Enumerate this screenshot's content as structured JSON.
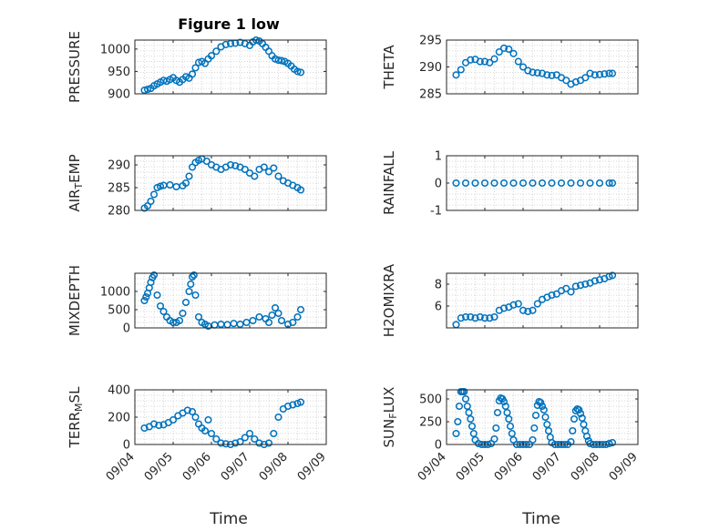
{
  "figure": {
    "title": "Figure 1 low",
    "xlabel": "Time"
  },
  "style": {
    "marker_color": "#0072BD",
    "axis_color": "#262626",
    "grid_color": "#c8c8c8"
  },
  "chart_data": [
    {
      "type": "scatter",
      "ylabel": "PRESSURE",
      "title": "Figure 1 low",
      "xlim": [
        "09/04",
        "09/09"
      ],
      "ylim": [
        900,
        1020
      ],
      "yticks": [
        900,
        950,
        1000
      ],
      "xtick_labels": [],
      "grid": "dotted",
      "series": [
        {
          "x": [
            "09/04 06:00",
            "09/04 08:00",
            "09/04 10:00",
            "09/04 12:00",
            "09/04 14:00",
            "09/04 16:00",
            "09/04 18:00",
            "09/04 20:00",
            "09/04 22:00",
            "09/05 00:00",
            "09/05 02:00",
            "09/05 04:00",
            "09/05 06:00",
            "09/05 08:00",
            "09/05 10:00",
            "09/05 12:00",
            "09/05 14:00",
            "09/05 16:00",
            "09/05 18:00",
            "09/05 20:00",
            "09/05 22:00",
            "09/06 00:00",
            "09/06 03:00",
            "09/06 06:00",
            "09/06 09:00",
            "09/06 12:00",
            "09/06 15:00",
            "09/06 18:00",
            "09/06 21:00",
            "09/07 00:00",
            "09/07 02:00",
            "09/07 04:00",
            "09/07 06:00",
            "09/07 08:00",
            "09/07 10:00",
            "09/07 12:00",
            "09/07 14:00",
            "09/07 16:00",
            "09/07 18:00",
            "09/07 20:00",
            "09/07 22:00",
            "09/08 00:00",
            "09/08 02:00",
            "09/08 04:00",
            "09/08 06:00",
            "09/08 08:00"
          ],
          "y": [
            908,
            910,
            912,
            918,
            922,
            926,
            930,
            928,
            932,
            936,
            930,
            926,
            932,
            938,
            935,
            944,
            958,
            970,
            972,
            968,
            978,
            985,
            995,
            1005,
            1010,
            1012,
            1013,
            1015,
            1012,
            1008,
            1016,
            1020,
            1018,
            1012,
            1004,
            995,
            985,
            978,
            975,
            974,
            972,
            968,
            962,
            955,
            950,
            948
          ]
        }
      ]
    },
    {
      "type": "scatter",
      "ylabel": "THETA",
      "xlim": [
        "09/04",
        "09/09"
      ],
      "ylim": [
        285,
        295
      ],
      "yticks": [
        285,
        290,
        295
      ],
      "xtick_labels": [],
      "grid": "dotted",
      "series": [
        {
          "x": [
            "09/04 06:00",
            "09/04 09:00",
            "09/04 12:00",
            "09/04 15:00",
            "09/04 18:00",
            "09/04 21:00",
            "09/05 00:00",
            "09/05 03:00",
            "09/05 06:00",
            "09/05 09:00",
            "09/05 12:00",
            "09/05 15:00",
            "09/05 18:00",
            "09/05 21:00",
            "09/06 00:00",
            "09/06 03:00",
            "09/06 06:00",
            "09/06 09:00",
            "09/06 12:00",
            "09/06 15:00",
            "09/06 18:00",
            "09/06 21:00",
            "09/07 00:00",
            "09/07 03:00",
            "09/07 06:00",
            "09/07 09:00",
            "09/07 12:00",
            "09/07 15:00",
            "09/07 18:00",
            "09/07 21:00",
            "09/08 00:00",
            "09/08 03:00",
            "09/08 06:00",
            "09/08 08:00"
          ],
          "y": [
            288.5,
            289.5,
            290.8,
            291.3,
            291.4,
            291.0,
            291.0,
            290.8,
            291.5,
            292.8,
            293.5,
            293.3,
            292.5,
            291.0,
            290.0,
            289.3,
            289.0,
            288.9,
            288.8,
            288.5,
            288.4,
            288.5,
            288.0,
            287.5,
            286.8,
            287.2,
            287.5,
            288.0,
            288.8,
            288.5,
            288.6,
            288.7,
            288.8,
            288.8
          ]
        }
      ]
    },
    {
      "type": "scatter",
      "ylabel": "AIR_TEMP",
      "xlim": [
        "09/04",
        "09/09"
      ],
      "ylim": [
        280,
        292
      ],
      "yticks": [
        280,
        285,
        290
      ],
      "xtick_labels": [],
      "grid": "dotted",
      "series": [
        {
          "x": [
            "09/04 06:00",
            "09/04 08:00",
            "09/04 10:00",
            "09/04 12:00",
            "09/04 14:00",
            "09/04 16:00",
            "09/04 18:00",
            "09/04 22:00",
            "09/05 02:00",
            "09/05 06:00",
            "09/05 08:00",
            "09/05 10:00",
            "09/05 12:00",
            "09/05 14:00",
            "09/05 16:00",
            "09/05 18:00",
            "09/05 21:00",
            "09/06 00:00",
            "09/06 03:00",
            "09/06 06:00",
            "09/06 09:00",
            "09/06 12:00",
            "09/06 15:00",
            "09/06 18:00",
            "09/06 21:00",
            "09/07 00:00",
            "09/07 03:00",
            "09/07 06:00",
            "09/07 09:00",
            "09/07 12:00",
            "09/07 15:00",
            "09/07 18:00",
            "09/07 21:00",
            "09/08 00:00",
            "09/08 03:00",
            "09/08 06:00",
            "09/08 08:00"
          ],
          "y": [
            280.5,
            281.0,
            282.0,
            283.5,
            285.0,
            285.3,
            285.5,
            285.6,
            285.2,
            285.4,
            286.0,
            287.5,
            289.5,
            290.5,
            291.0,
            291.3,
            290.8,
            290.0,
            289.5,
            289.0,
            289.5,
            290.0,
            289.8,
            289.5,
            289.0,
            288.2,
            287.5,
            289.0,
            289.5,
            288.5,
            289.3,
            287.5,
            286.5,
            286.0,
            285.5,
            285.0,
            284.5
          ]
        }
      ]
    },
    {
      "type": "scatter",
      "ylabel": "RAINFALL",
      "xlim": [
        "09/04",
        "09/09"
      ],
      "ylim": [
        -1,
        1
      ],
      "yticks": [
        -1,
        0,
        1
      ],
      "xtick_labels": [],
      "grid": "dotted",
      "series": [
        {
          "x": [
            "09/04 06:00",
            "09/04 12:00",
            "09/04 18:00",
            "09/05 00:00",
            "09/05 06:00",
            "09/05 12:00",
            "09/05 18:00",
            "09/06 00:00",
            "09/06 06:00",
            "09/06 12:00",
            "09/06 18:00",
            "09/07 00:00",
            "09/07 06:00",
            "09/07 12:00",
            "09/07 18:00",
            "09/08 00:00",
            "09/08 06:00",
            "09/08 08:00"
          ],
          "y": [
            0,
            0,
            0,
            0,
            0,
            0,
            0,
            0,
            0,
            0,
            0,
            0,
            0,
            0,
            0,
            0,
            0,
            0
          ]
        }
      ]
    },
    {
      "type": "scatter",
      "ylabel": "MIXDEPTH",
      "xlim": [
        "09/04",
        "09/09"
      ],
      "ylim": [
        0,
        1500
      ],
      "yticks": [
        0,
        500,
        1000
      ],
      "xtick_labels": [],
      "grid": "dotted",
      "series": [
        {
          "x": [
            "09/04 06:00",
            "09/04 07:00",
            "09/04 08:00",
            "09/04 09:00",
            "09/04 10:00",
            "09/04 11:00",
            "09/04 12:00",
            "09/04 14:00",
            "09/04 16:00",
            "09/04 18:00",
            "09/04 20:00",
            "09/04 22:00",
            "09/05 00:00",
            "09/05 02:00",
            "09/05 04:00",
            "09/05 06:00",
            "09/05 08:00",
            "09/05 10:00",
            "09/05 11:00",
            "09/05 12:00",
            "09/05 13:00",
            "09/05 14:00",
            "09/05 16:00",
            "09/05 18:00",
            "09/05 20:00",
            "09/05 22:00",
            "09/06 02:00",
            "09/06 06:00",
            "09/06 10:00",
            "09/06 14:00",
            "09/06 18:00",
            "09/06 22:00",
            "09/07 02:00",
            "09/07 06:00",
            "09/07 10:00",
            "09/07 12:00",
            "09/07 14:00",
            "09/07 16:00",
            "09/07 18:00",
            "09/07 20:00",
            "09/08 00:00",
            "09/08 03:00",
            "09/08 06:00",
            "09/08 08:00"
          ],
          "y": [
            750,
            850,
            950,
            1100,
            1250,
            1380,
            1450,
            900,
            600,
            450,
            300,
            200,
            150,
            150,
            200,
            400,
            700,
            1000,
            1200,
            1400,
            1450,
            900,
            300,
            150,
            100,
            50,
            80,
            100,
            90,
            120,
            100,
            150,
            200,
            300,
            250,
            150,
            350,
            550,
            400,
            200,
            100,
            150,
            300,
            500
          ]
        }
      ]
    },
    {
      "type": "scatter",
      "ylabel": "H2OMIXRA",
      "xlim": [
        "09/04",
        "09/09"
      ],
      "ylim": [
        4,
        9
      ],
      "yticks": [
        6,
        8
      ],
      "xtick_labels": [],
      "grid": "dotted",
      "series": [
        {
          "x": [
            "09/04 06:00",
            "09/04 09:00",
            "09/04 12:00",
            "09/04 15:00",
            "09/04 18:00",
            "09/04 21:00",
            "09/05 00:00",
            "09/05 03:00",
            "09/05 06:00",
            "09/05 09:00",
            "09/05 12:00",
            "09/05 15:00",
            "09/05 18:00",
            "09/05 21:00",
            "09/06 00:00",
            "09/06 03:00",
            "09/06 06:00",
            "09/06 09:00",
            "09/06 12:00",
            "09/06 15:00",
            "09/06 18:00",
            "09/06 21:00",
            "09/07 00:00",
            "09/07 03:00",
            "09/07 06:00",
            "09/07 09:00",
            "09/07 12:00",
            "09/07 15:00",
            "09/07 18:00",
            "09/07 21:00",
            "09/08 00:00",
            "09/08 03:00",
            "09/08 06:00",
            "09/08 08:00"
          ],
          "y": [
            4.3,
            4.9,
            5.0,
            5.0,
            4.9,
            5.0,
            4.9,
            4.9,
            5.0,
            5.6,
            5.8,
            5.9,
            6.1,
            6.2,
            5.6,
            5.5,
            5.6,
            6.2,
            6.6,
            6.8,
            7.0,
            7.1,
            7.4,
            7.6,
            7.3,
            7.8,
            7.9,
            8.0,
            8.1,
            8.3,
            8.4,
            8.5,
            8.7,
            8.8
          ]
        }
      ]
    },
    {
      "type": "scatter",
      "ylabel": "TERR_MSL",
      "xlim": [
        "09/04",
        "09/09"
      ],
      "ylim": [
        0,
        400
      ],
      "yticks": [
        0,
        200,
        400
      ],
      "xtick_labels": [
        "09/04",
        "09/05",
        "09/06",
        "09/07",
        "09/08",
        "09/09"
      ],
      "xlabel": "Time",
      "grid": "dotted",
      "series": [
        {
          "x": [
            "09/04 06:00",
            "09/04 09:00",
            "09/04 12:00",
            "09/04 15:00",
            "09/04 18:00",
            "09/04 21:00",
            "09/05 00:00",
            "09/05 03:00",
            "09/05 06:00",
            "09/05 09:00",
            "09/05 12:00",
            "09/05 14:00",
            "09/05 16:00",
            "09/05 18:00",
            "09/05 20:00",
            "09/05 22:00",
            "09/06 00:00",
            "09/06 03:00",
            "09/06 06:00",
            "09/06 09:00",
            "09/06 12:00",
            "09/06 15:00",
            "09/06 18:00",
            "09/06 21:00",
            "09/07 00:00",
            "09/07 03:00",
            "09/07 06:00",
            "09/07 09:00",
            "09/07 12:00",
            "09/07 15:00",
            "09/07 18:00",
            "09/07 21:00",
            "09/08 00:00",
            "09/08 03:00",
            "09/08 06:00",
            "09/08 08:00"
          ],
          "y": [
            120,
            130,
            150,
            140,
            145,
            160,
            180,
            210,
            230,
            250,
            240,
            200,
            150,
            120,
            100,
            180,
            80,
            40,
            10,
            5,
            0,
            10,
            20,
            50,
            80,
            40,
            10,
            0,
            10,
            80,
            200,
            260,
            280,
            290,
            300,
            310
          ]
        }
      ]
    },
    {
      "type": "scatter",
      "ylabel": "SUN_FLUX",
      "xlim": [
        "09/04",
        "09/09"
      ],
      "ylim": [
        0,
        600
      ],
      "yticks": [
        0,
        250,
        500
      ],
      "xtick_labels": [
        "09/04",
        "09/05",
        "09/06",
        "09/07",
        "09/08",
        "09/09"
      ],
      "xlabel": "Time",
      "grid": "dotted",
      "series": [
        {
          "x": [
            "09/04 06:00",
            "09/04 07:00",
            "09/04 08:00",
            "09/04 09:00",
            "09/04 10:00",
            "09/04 11:00",
            "09/04 12:00",
            "09/04 13:00",
            "09/04 14:00",
            "09/04 15:00",
            "09/04 16:00",
            "09/04 17:00",
            "09/04 18:00",
            "09/04 20:00",
            "09/04 22:00",
            "09/05 00:00",
            "09/05 02:00",
            "09/05 04:00",
            "09/05 06:00",
            "09/05 07:00",
            "09/05 08:00",
            "09/05 09:00",
            "09/05 10:00",
            "09/05 11:00",
            "09/05 12:00",
            "09/05 13:00",
            "09/05 14:00",
            "09/05 15:00",
            "09/05 16:00",
            "09/05 17:00",
            "09/05 18:00",
            "09/05 20:00",
            "09/05 22:00",
            "09/06 00:00",
            "09/06 02:00",
            "09/06 04:00",
            "09/06 06:00",
            "09/06 07:00",
            "09/06 08:00",
            "09/06 09:00",
            "09/06 10:00",
            "09/06 11:00",
            "09/06 12:00",
            "09/06 13:00",
            "09/06 14:00",
            "09/06 15:00",
            "09/06 16:00",
            "09/06 17:00",
            "09/06 18:00",
            "09/06 20:00",
            "09/06 22:00",
            "09/07 00:00",
            "09/07 02:00",
            "09/07 04:00",
            "09/07 06:00",
            "09/07 07:00",
            "09/07 08:00",
            "09/07 09:00",
            "09/07 10:00",
            "09/07 11:00",
            "09/07 12:00",
            "09/07 13:00",
            "09/07 14:00",
            "09/07 15:00",
            "09/07 16:00",
            "09/07 17:00",
            "09/07 18:00",
            "09/07 20:00",
            "09/07 22:00",
            "09/08 00:00",
            "09/08 02:00",
            "09/08 04:00",
            "09/08 06:00",
            "09/08 08:00"
          ],
          "y": [
            120,
            250,
            420,
            580,
            580,
            580,
            500,
            420,
            350,
            280,
            200,
            120,
            50,
            10,
            0,
            0,
            0,
            10,
            60,
            180,
            350,
            480,
            510,
            500,
            470,
            420,
            350,
            280,
            200,
            120,
            50,
            0,
            0,
            0,
            0,
            0,
            50,
            180,
            320,
            430,
            470,
            460,
            420,
            380,
            300,
            220,
            150,
            80,
            20,
            0,
            0,
            0,
            0,
            0,
            30,
            150,
            280,
            370,
            390,
            380,
            340,
            290,
            220,
            150,
            90,
            40,
            10,
            0,
            0,
            0,
            0,
            0,
            10,
            20
          ]
        }
      ]
    }
  ]
}
